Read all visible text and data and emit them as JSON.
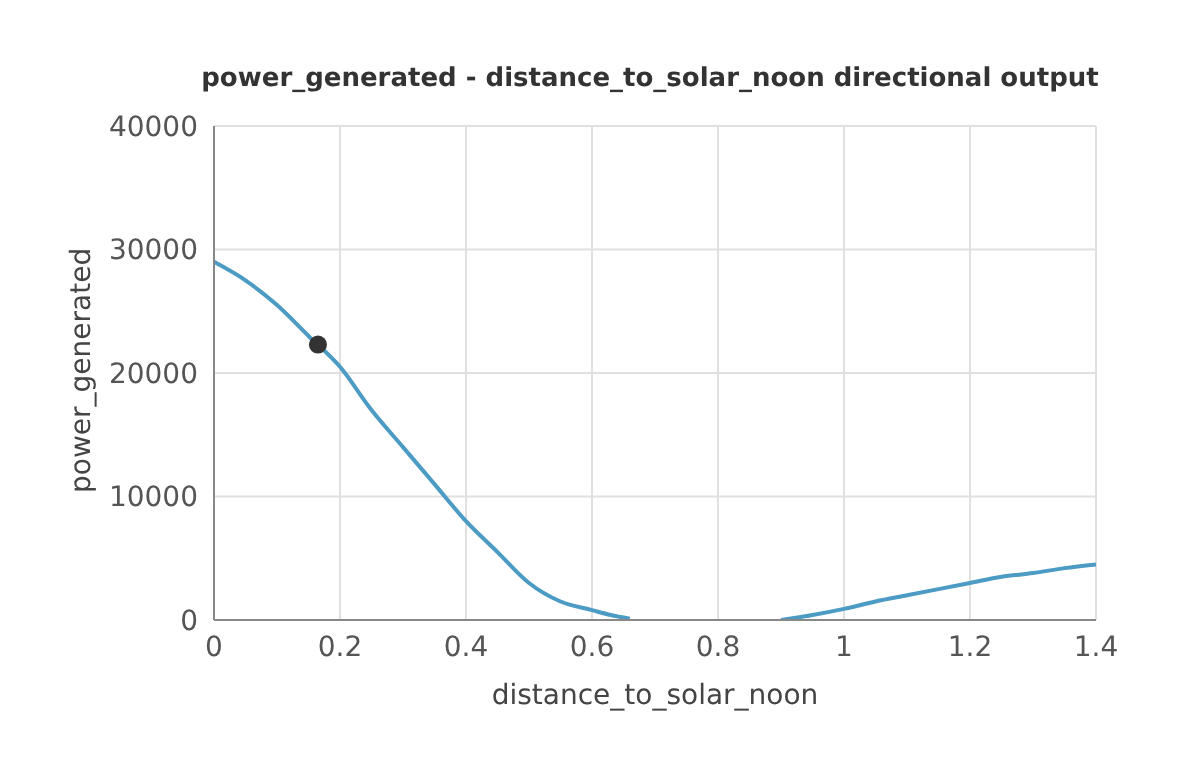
{
  "chart_data": {
    "type": "line",
    "title": "power_generated - distance_to_solar_noon directional output",
    "xlabel": "distance_to_solar_noon",
    "ylabel": "power_generated",
    "xlim": [
      0,
      1.4
    ],
    "xticks": [
      0,
      0.2,
      0.4,
      0.6,
      0.8,
      1,
      1.2,
      1.4
    ],
    "ylim": [
      0,
      40000
    ],
    "yticks": [
      0,
      10000,
      20000,
      30000,
      40000
    ],
    "grid": true,
    "series": [
      {
        "color": "#4c9bc4",
        "marker": "none",
        "x": [
          0,
          0.05,
          0.1,
          0.15,
          0.2,
          0.25,
          0.3,
          0.35,
          0.4,
          0.45,
          0.5,
          0.55,
          0.6,
          0.63,
          0.66,
          0.78,
          0.9,
          0.95,
          1.0,
          1.05,
          1.1,
          1.15,
          1.2,
          1.25,
          1.3,
          1.35,
          1.4
        ],
        "values": [
          29000,
          27500,
          25500,
          23000,
          20500,
          17000,
          14000,
          11000,
          8000,
          5500,
          3000,
          1500,
          800,
          400,
          100,
          null,
          0,
          400,
          900,
          1500,
          2000,
          2500,
          3000,
          3500,
          3800,
          4200,
          4500
        ]
      },
      {
        "type": "scatter",
        "color": "#333333",
        "marker": "circle",
        "x": [
          0.165
        ],
        "values": [
          22300
        ]
      }
    ]
  }
}
